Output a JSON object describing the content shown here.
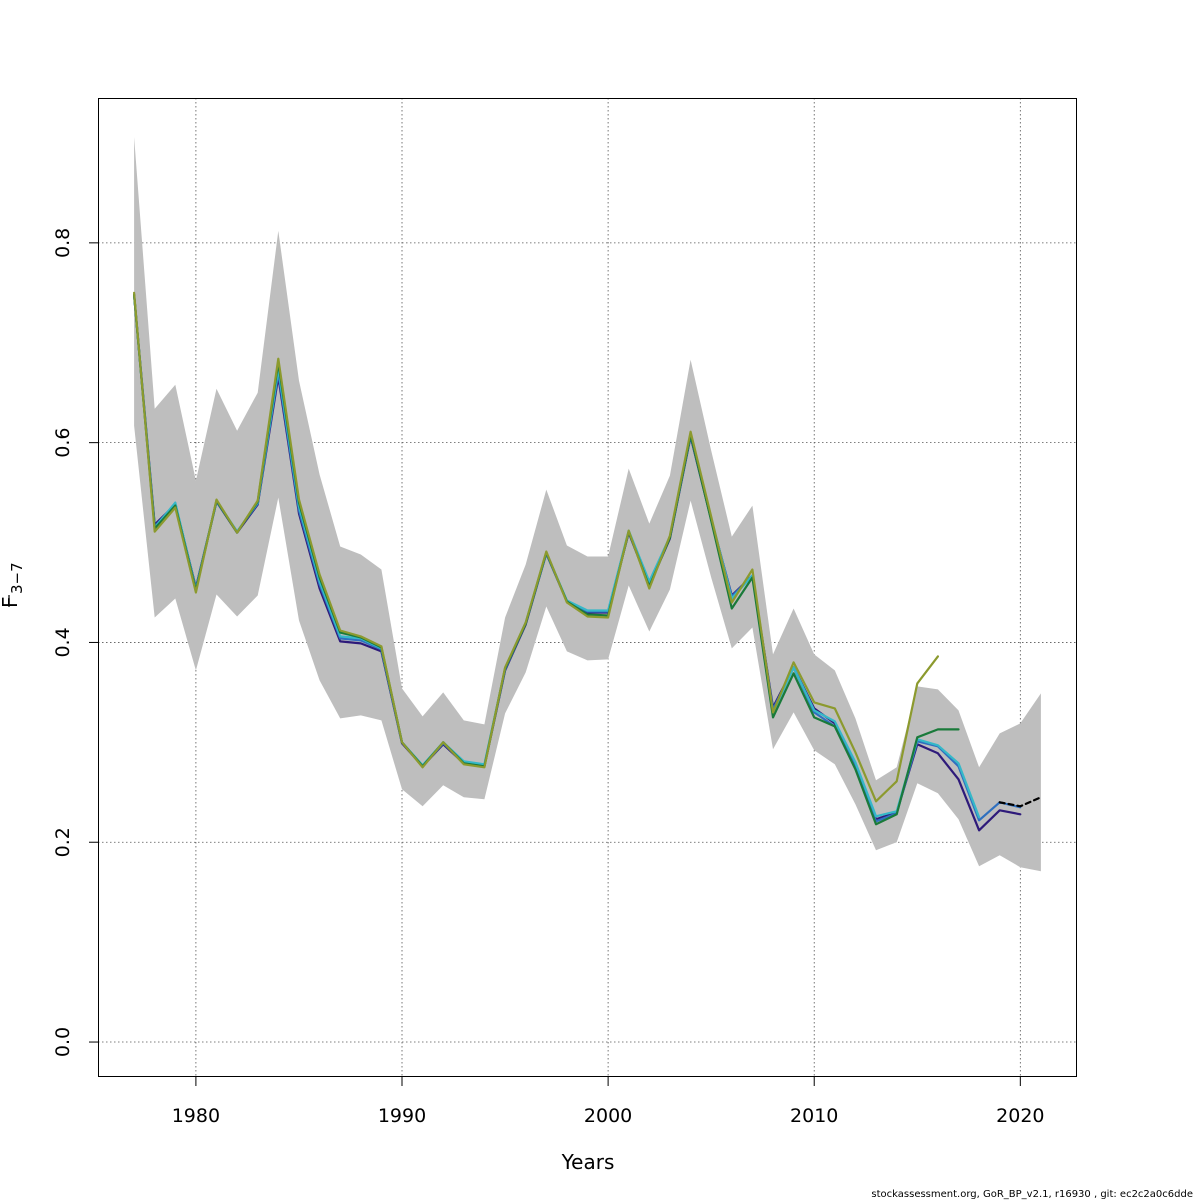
{
  "chart_data": {
    "type": "line",
    "xlabel": "Years",
    "ylabel": "F",
    "ylabel_subscript": "3−7",
    "xlim": [
      1975.25,
      2022.75
    ],
    "ylim": [
      -0.035,
      0.945
    ],
    "xticks": [
      1980,
      1990,
      2000,
      2010,
      2020
    ],
    "xtick_labels": [
      "1980",
      "1990",
      "2000",
      "2010",
      "2020"
    ],
    "yticks": [
      0.0,
      0.2,
      0.4,
      0.6,
      0.8
    ],
    "ytick_labels": [
      "0.0",
      "0.2",
      "0.4",
      "0.6",
      "0.8"
    ],
    "grid": true,
    "footer": "stockassessment.org, GoR_BP_v2.1, r16930 , git: ec2c2a0c6dde",
    "confidence_band": {
      "color": "#bebebe",
      "x": [
        1977,
        1978,
        1979,
        1980,
        1981,
        1982,
        1983,
        1984,
        1985,
        1986,
        1987,
        1988,
        1989,
        1990,
        1991,
        1992,
        1993,
        1994,
        1995,
        1996,
        1997,
        1998,
        1999,
        2000,
        2001,
        2002,
        2003,
        2004,
        2005,
        2006,
        2007,
        2008,
        2009,
        2010,
        2011,
        2012,
        2013,
        2014,
        2015,
        2016,
        2017,
        2018,
        2019,
        2020,
        2021
      ],
      "upper": [
        0.906,
        0.634,
        0.658,
        0.562,
        0.654,
        0.612,
        0.65,
        0.812,
        0.662,
        0.568,
        0.496,
        0.488,
        0.473,
        0.354,
        0.326,
        0.35,
        0.322,
        0.318,
        0.425,
        0.478,
        0.553,
        0.497,
        0.486,
        0.486,
        0.574,
        0.519,
        0.567,
        0.683,
        0.592,
        0.506,
        0.537,
        0.388,
        0.434,
        0.388,
        0.372,
        0.324,
        0.262,
        0.275,
        0.356,
        0.353,
        0.332,
        0.275,
        0.309,
        0.319,
        0.349
      ],
      "lower": [
        0.617,
        0.425,
        0.444,
        0.372,
        0.448,
        0.426,
        0.447,
        0.545,
        0.422,
        0.362,
        0.324,
        0.327,
        0.322,
        0.253,
        0.236,
        0.257,
        0.245,
        0.243,
        0.329,
        0.37,
        0.436,
        0.391,
        0.382,
        0.383,
        0.457,
        0.411,
        0.453,
        0.542,
        0.465,
        0.394,
        0.415,
        0.293,
        0.33,
        0.292,
        0.278,
        0.238,
        0.192,
        0.2,
        0.259,
        0.249,
        0.223,
        0.176,
        0.187,
        0.175,
        0.171
      ]
    },
    "series": [
      {
        "color": "#2e1a7a",
        "x": [
          1977,
          1978,
          1979,
          1980,
          1981,
          1982,
          1983,
          1984,
          1985,
          1986,
          1987,
          1988,
          1989,
          1990,
          1991,
          1992,
          1993,
          1994,
          1995,
          1996,
          1997,
          1998,
          1999,
          2000,
          2001,
          2002,
          2003,
          2004,
          2005,
          2006,
          2007,
          2008,
          2009,
          2010,
          2011,
          2012,
          2013,
          2014,
          2015,
          2016,
          2017,
          2018,
          2019,
          2020
        ],
        "values": [
          0.748,
          0.518,
          0.538,
          0.455,
          0.541,
          0.51,
          0.538,
          0.666,
          0.529,
          0.454,
          0.401,
          0.399,
          0.391,
          0.299,
          0.276,
          0.298,
          0.279,
          0.276,
          0.372,
          0.418,
          0.489,
          0.441,
          0.43,
          0.43,
          0.51,
          0.457,
          0.504,
          0.606,
          0.523,
          0.447,
          0.467,
          0.335,
          0.375,
          0.334,
          0.319,
          0.278,
          0.223,
          0.23,
          0.298,
          0.289,
          0.263,
          0.212,
          0.232,
          0.228
        ]
      },
      {
        "color": "#2f6fbf",
        "x": [
          1977,
          1978,
          1979,
          1980,
          1981,
          1982,
          1983,
          1984,
          1985,
          1986,
          1987,
          1988,
          1989,
          1990,
          1991,
          1992,
          1993,
          1994,
          1995,
          1996,
          1997,
          1998,
          1999,
          2000,
          2001,
          2002,
          2003,
          2004,
          2005,
          2006,
          2007,
          2008,
          2009,
          2010,
          2011,
          2012,
          2013,
          2014,
          2015,
          2016,
          2017,
          2018,
          2019,
          2020
        ],
        "values": [
          0.748,
          0.516,
          0.539,
          0.454,
          0.541,
          0.511,
          0.539,
          0.67,
          0.532,
          0.458,
          0.404,
          0.402,
          0.393,
          0.3,
          0.276,
          0.299,
          0.28,
          0.277,
          0.373,
          0.419,
          0.489,
          0.441,
          0.431,
          0.431,
          0.511,
          0.459,
          0.505,
          0.607,
          0.524,
          0.446,
          0.467,
          0.333,
          0.375,
          0.33,
          0.316,
          0.276,
          0.221,
          0.229,
          0.301,
          0.296,
          0.276,
          0.222,
          0.24,
          0.235
        ]
      },
      {
        "color": "#35b8c8",
        "x": [
          1977,
          1978,
          1979,
          1980,
          1981,
          1982,
          1983,
          1984,
          1985,
          1986,
          1987,
          1988,
          1989,
          1990,
          1991,
          1992,
          1993,
          1994,
          1995,
          1996,
          1997,
          1998,
          1999,
          2000,
          2001,
          2002,
          2003,
          2004,
          2005,
          2006,
          2007,
          2008,
          2009,
          2010,
          2011,
          2012,
          2013,
          2014,
          2015,
          2016,
          2017,
          2018
        ],
        "values": [
          0.748,
          0.515,
          0.54,
          0.453,
          0.542,
          0.511,
          0.54,
          0.674,
          0.536,
          0.461,
          0.406,
          0.404,
          0.394,
          0.3,
          0.277,
          0.3,
          0.281,
          0.278,
          0.374,
          0.42,
          0.49,
          0.442,
          0.432,
          0.432,
          0.512,
          0.461,
          0.506,
          0.608,
          0.525,
          0.444,
          0.467,
          0.33,
          0.375,
          0.332,
          0.321,
          0.28,
          0.226,
          0.231,
          0.303,
          0.297,
          0.279,
          0.225
        ]
      },
      {
        "color": "#1a7a3a",
        "x": [
          1977,
          1978,
          1979,
          1980,
          1981,
          1982,
          1983,
          1984,
          1985,
          1986,
          1987,
          1988,
          1989,
          1990,
          1991,
          1992,
          1993,
          1994,
          1995,
          1996,
          1997,
          1998,
          1999,
          2000,
          2001,
          2002,
          2003,
          2004,
          2005,
          2006,
          2007,
          2008,
          2009,
          2010,
          2011,
          2012,
          2013,
          2014,
          2015,
          2016,
          2017
        ],
        "values": [
          0.748,
          0.514,
          0.537,
          0.452,
          0.542,
          0.51,
          0.541,
          0.68,
          0.54,
          0.465,
          0.41,
          0.405,
          0.395,
          0.3,
          0.276,
          0.3,
          0.279,
          0.276,
          0.374,
          0.419,
          0.49,
          0.441,
          0.428,
          0.427,
          0.511,
          0.456,
          0.505,
          0.608,
          0.522,
          0.434,
          0.465,
          0.325,
          0.369,
          0.325,
          0.316,
          0.273,
          0.218,
          0.228,
          0.305,
          0.313,
          0.313
        ]
      },
      {
        "color": "#8c9a2e",
        "x": [
          1977,
          1978,
          1979,
          1980,
          1981,
          1982,
          1983,
          1984,
          1985,
          1986,
          1987,
          1988,
          1989,
          1990,
          1991,
          1992,
          1993,
          1994,
          1995,
          1996,
          1997,
          1998,
          1999,
          2000,
          2001,
          2002,
          2003,
          2004,
          2005,
          2006,
          2007,
          2008,
          2009,
          2010,
          2011,
          2012,
          2013,
          2014,
          2015,
          2016
        ],
        "values": [
          0.75,
          0.511,
          0.535,
          0.45,
          0.543,
          0.51,
          0.542,
          0.684,
          0.543,
          0.468,
          0.412,
          0.406,
          0.396,
          0.3,
          0.275,
          0.3,
          0.278,
          0.275,
          0.375,
          0.42,
          0.491,
          0.44,
          0.426,
          0.425,
          0.512,
          0.454,
          0.507,
          0.611,
          0.526,
          0.44,
          0.473,
          0.33,
          0.38,
          0.34,
          0.334,
          0.29,
          0.241,
          0.261,
          0.359,
          0.386
        ]
      },
      {
        "color": "#000000",
        "dashed": true,
        "x": [
          2019,
          2020,
          2021
        ],
        "values": [
          0.24,
          0.236,
          0.245
        ]
      }
    ]
  }
}
